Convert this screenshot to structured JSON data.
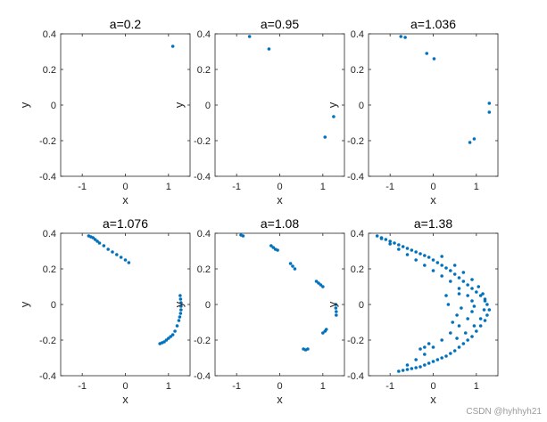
{
  "watermark": "CSDN @hyhhyh21",
  "chart_data": [
    {
      "type": "scatter",
      "title": "a=0.2",
      "xlabel": "x",
      "ylabel": "y",
      "xlim": [
        -1.5,
        1.5
      ],
      "ylim": [
        -0.4,
        0.4
      ],
      "xticks": [
        "-1",
        "0",
        "1"
      ],
      "yticks": [
        "0.4",
        "0.2",
        "0",
        "-0.2",
        "-0.4"
      ],
      "color": "#0072BD",
      "points": [
        [
          1.1,
          0.33
        ]
      ]
    },
    {
      "type": "scatter",
      "title": "a=0.95",
      "xlabel": "x",
      "ylabel": "y",
      "xlim": [
        -1.5,
        1.5
      ],
      "ylim": [
        -0.4,
        0.4
      ],
      "xticks": [
        "-1",
        "0",
        "1"
      ],
      "yticks": [
        "0.4",
        "0.2",
        "0",
        "-0.2",
        "-0.4"
      ],
      "color": "#0072BD",
      "points": [
        [
          -0.7,
          0.385
        ],
        [
          -0.25,
          0.315
        ],
        [
          1.25,
          -0.065
        ],
        [
          1.05,
          -0.18
        ]
      ]
    },
    {
      "type": "scatter",
      "title": "a=1.036",
      "xlabel": "x",
      "ylabel": "y",
      "xlim": [
        -1.5,
        1.5
      ],
      "ylim": [
        -0.4,
        0.4
      ],
      "xticks": [
        "-1",
        "0",
        "1"
      ],
      "yticks": [
        "0.4",
        "0.2",
        "0",
        "-0.2",
        "-0.4"
      ],
      "color": "#0072BD",
      "points": [
        [
          -0.75,
          0.385
        ],
        [
          -0.65,
          0.38
        ],
        [
          -0.15,
          0.29
        ],
        [
          0.02,
          0.26
        ],
        [
          1.3,
          0.01
        ],
        [
          1.3,
          -0.04
        ],
        [
          0.95,
          -0.19
        ],
        [
          0.85,
          -0.21
        ]
      ]
    },
    {
      "type": "scatter",
      "title": "a=1.076",
      "xlabel": "x",
      "ylabel": "y",
      "xlim": [
        -1.5,
        1.5
      ],
      "ylim": [
        -0.4,
        0.4
      ],
      "xticks": [
        "-1",
        "0",
        "1"
      ],
      "yticks": [
        "0.4",
        "0.2",
        "0",
        "-0.2",
        "-0.4"
      ],
      "color": "#0072BD",
      "points": [
        [
          -0.85,
          0.385
        ],
        [
          -0.8,
          0.38
        ],
        [
          -0.75,
          0.375
        ],
        [
          -0.7,
          0.365
        ],
        [
          -0.65,
          0.355
        ],
        [
          -0.6,
          0.345
        ],
        [
          -0.5,
          0.33
        ],
        [
          -0.4,
          0.31
        ],
        [
          -0.3,
          0.295
        ],
        [
          -0.2,
          0.28
        ],
        [
          -0.1,
          0.265
        ],
        [
          0.0,
          0.25
        ],
        [
          0.08,
          0.235
        ],
        [
          1.27,
          0.05
        ],
        [
          1.28,
          0.03
        ],
        [
          1.29,
          0.01
        ],
        [
          1.29,
          -0.01
        ],
        [
          1.29,
          -0.03
        ],
        [
          1.28,
          -0.05
        ],
        [
          1.26,
          -0.07
        ],
        [
          1.24,
          -0.09
        ],
        [
          1.2,
          -0.12
        ],
        [
          1.15,
          -0.15
        ],
        [
          1.1,
          -0.17
        ],
        [
          1.05,
          -0.18
        ],
        [
          1.0,
          -0.19
        ],
        [
          0.95,
          -0.2
        ],
        [
          0.9,
          -0.21
        ],
        [
          0.85,
          -0.215
        ],
        [
          0.8,
          -0.22
        ]
      ]
    },
    {
      "type": "scatter",
      "title": "a=1.08",
      "xlabel": "x",
      "ylabel": "y",
      "xlim": [
        -1.5,
        1.5
      ],
      "ylim": [
        -0.4,
        0.4
      ],
      "xticks": [
        "-1",
        "0",
        "1"
      ],
      "yticks": [
        "0.4",
        "0.2",
        "0",
        "-0.2",
        "-0.4"
      ],
      "color": "#0072BD",
      "points": [
        [
          -0.9,
          0.39
        ],
        [
          -0.85,
          0.385
        ],
        [
          -0.2,
          0.33
        ],
        [
          -0.15,
          0.32
        ],
        [
          -0.1,
          0.31
        ],
        [
          -0.05,
          0.305
        ],
        [
          0.25,
          0.23
        ],
        [
          0.3,
          0.215
        ],
        [
          0.35,
          0.2
        ],
        [
          0.85,
          0.13
        ],
        [
          0.9,
          0.12
        ],
        [
          0.95,
          0.11
        ],
        [
          1.0,
          0.1
        ],
        [
          1.3,
          0.0
        ],
        [
          1.3,
          -0.02
        ],
        [
          1.31,
          -0.04
        ],
        [
          1.31,
          -0.06
        ],
        [
          0.55,
          -0.25
        ],
        [
          0.6,
          -0.255
        ],
        [
          0.65,
          -0.25
        ],
        [
          1.0,
          -0.16
        ],
        [
          1.05,
          -0.15
        ],
        [
          1.08,
          -0.14
        ]
      ]
    },
    {
      "type": "scatter",
      "title": "a=1.38",
      "xlabel": "x",
      "ylabel": "y",
      "xlim": [
        -1.5,
        1.5
      ],
      "ylim": [
        -0.4,
        0.4
      ],
      "xticks": [
        "-1",
        "0",
        "1"
      ],
      "yticks": [
        "0.4",
        "0.2",
        "0",
        "-0.2",
        "-0.4"
      ],
      "color": "#0072BD",
      "points": [
        [
          -1.3,
          0.385
        ],
        [
          -1.2,
          0.375
        ],
        [
          -1.1,
          0.365
        ],
        [
          -1.0,
          0.355
        ],
        [
          -0.9,
          0.345
        ],
        [
          -0.8,
          0.335
        ],
        [
          -0.7,
          0.325
        ],
        [
          -0.6,
          0.315
        ],
        [
          -0.5,
          0.305
        ],
        [
          -0.4,
          0.295
        ],
        [
          -0.3,
          0.285
        ],
        [
          -0.2,
          0.275
        ],
        [
          -0.1,
          0.265
        ],
        [
          0.0,
          0.25
        ],
        [
          0.1,
          0.235
        ],
        [
          0.2,
          0.22
        ],
        [
          0.3,
          0.205
        ],
        [
          0.4,
          0.19
        ],
        [
          0.5,
          0.17
        ],
        [
          0.6,
          0.15
        ],
        [
          0.7,
          0.13
        ],
        [
          0.8,
          0.11
        ],
        [
          0.9,
          0.09
        ],
        [
          1.0,
          0.07
        ],
        [
          1.1,
          0.05
        ],
        [
          1.2,
          0.03
        ],
        [
          1.25,
          0.0
        ],
        [
          1.3,
          -0.03
        ],
        [
          1.25,
          -0.06
        ],
        [
          1.2,
          -0.09
        ],
        [
          1.1,
          -0.12
        ],
        [
          1.0,
          -0.15
        ],
        [
          0.9,
          -0.18
        ],
        [
          0.8,
          -0.2
        ],
        [
          0.7,
          -0.22
        ],
        [
          0.6,
          -0.24
        ],
        [
          0.5,
          -0.26
        ],
        [
          0.4,
          -0.275
        ],
        [
          0.3,
          -0.29
        ],
        [
          0.2,
          -0.3
        ],
        [
          0.1,
          -0.31
        ],
        [
          0.0,
          -0.32
        ],
        [
          -0.1,
          -0.33
        ],
        [
          -0.2,
          -0.34
        ],
        [
          -0.3,
          -0.35
        ],
        [
          -0.4,
          -0.355
        ],
        [
          -0.5,
          -0.36
        ],
        [
          -0.6,
          -0.365
        ],
        [
          -0.7,
          -0.37
        ],
        [
          -0.8,
          -0.375
        ],
        [
          -1.2,
          0.37
        ],
        [
          -1.0,
          0.34
        ],
        [
          -0.8,
          0.31
        ],
        [
          -0.6,
          0.28
        ],
        [
          -0.4,
          0.25
        ],
        [
          -0.2,
          0.22
        ],
        [
          0.0,
          0.19
        ],
        [
          0.2,
          0.16
        ],
        [
          0.4,
          0.13
        ],
        [
          0.6,
          0.09
        ],
        [
          0.8,
          0.05
        ],
        [
          0.9,
          0.02
        ],
        [
          0.95,
          -0.01
        ],
        [
          0.9,
          -0.04
        ],
        [
          0.8,
          -0.08
        ],
        [
          0.6,
          -0.12
        ],
        [
          0.4,
          -0.16
        ],
        [
          0.2,
          -0.2
        ],
        [
          0.0,
          -0.24
        ],
        [
          -0.2,
          -0.28
        ],
        [
          -0.4,
          -0.31
        ],
        [
          -0.6,
          -0.34
        ],
        [
          0.2,
          0.27
        ],
        [
          0.5,
          0.22
        ],
        [
          0.7,
          0.18
        ],
        [
          0.9,
          0.14
        ],
        [
          1.05,
          0.1
        ],
        [
          1.15,
          0.06
        ],
        [
          1.2,
          0.02
        ],
        [
          1.18,
          -0.03
        ],
        [
          1.1,
          -0.08
        ],
        [
          0.95,
          -0.12
        ],
        [
          0.75,
          -0.16
        ],
        [
          0.55,
          -0.19
        ],
        [
          0.6,
          0.06
        ],
        [
          0.65,
          -0.02
        ],
        [
          0.55,
          -0.06
        ],
        [
          0.45,
          -0.1
        ],
        [
          -0.1,
          -0.22
        ],
        [
          -0.2,
          -0.24
        ],
        [
          -0.3,
          -0.25
        ],
        [
          0.3,
          0.05
        ],
        [
          0.35,
          0.0
        ]
      ]
    }
  ]
}
